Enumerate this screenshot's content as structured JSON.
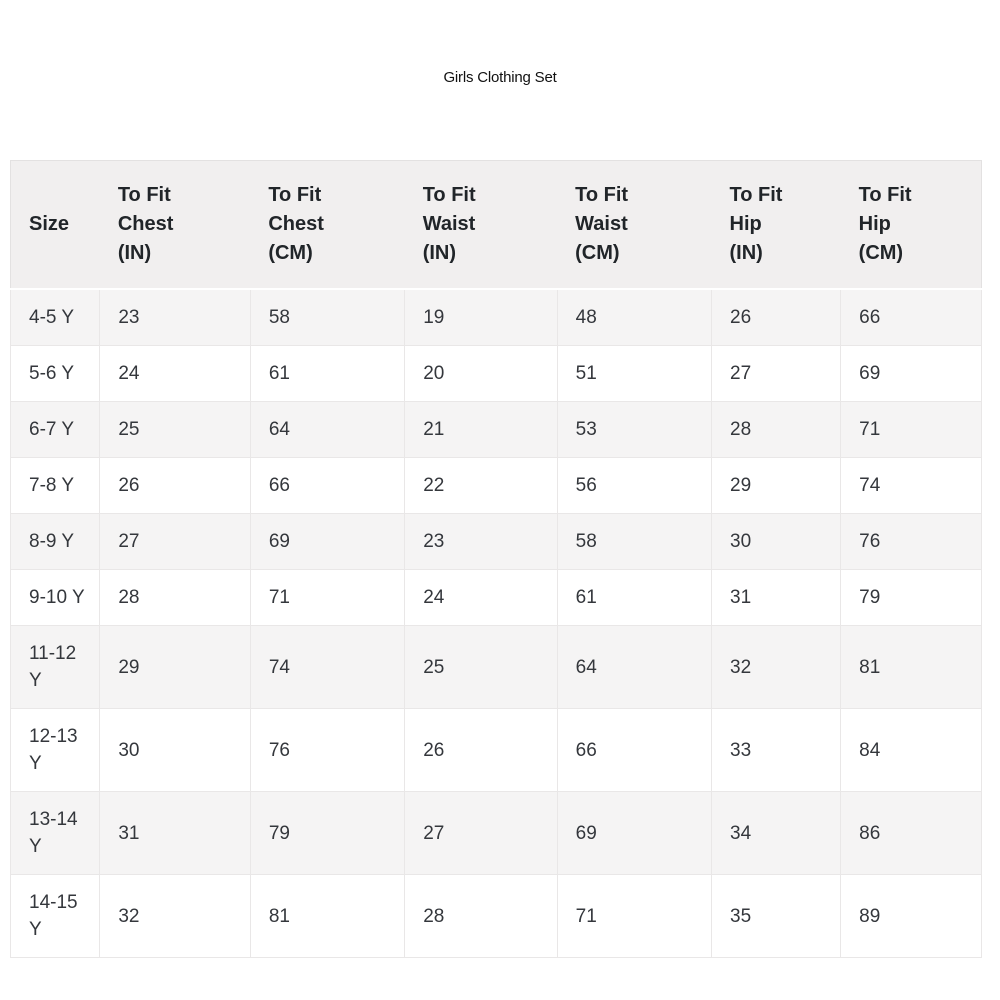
{
  "page": {
    "title": "Girls Clothing Set"
  },
  "size_chart": {
    "columns": [
      "Size",
      "To Fit\nChest\n(IN)",
      "To Fit\nChest\n(CM)",
      "To Fit\nWaist\n(IN)",
      "To Fit\nWaist\n(CM)",
      "To Fit\nHip\n(IN)",
      "To Fit\nHip\n(CM)"
    ],
    "rows": [
      [
        "4-5 Y",
        "23",
        "58",
        "19",
        "48",
        "26",
        "66"
      ],
      [
        "5-6 Y",
        "24",
        "61",
        "20",
        "51",
        "27",
        "69"
      ],
      [
        "6-7 Y",
        "25",
        "64",
        "21",
        "53",
        "28",
        "71"
      ],
      [
        "7-8 Y",
        "26",
        "66",
        "22",
        "56",
        "29",
        "74"
      ],
      [
        "8-9 Y",
        "27",
        "69",
        "23",
        "58",
        "30",
        "76"
      ],
      [
        "9-10 Y",
        "28",
        "71",
        "24",
        "61",
        "31",
        "79"
      ],
      [
        "11-12\nY",
        "29",
        "74",
        "25",
        "64",
        "32",
        "81"
      ],
      [
        "12-13\nY",
        "30",
        "76",
        "26",
        "66",
        "33",
        "84"
      ],
      [
        "13-14\nY",
        "31",
        "79",
        "27",
        "69",
        "34",
        "86"
      ],
      [
        "14-15\nY",
        "32",
        "81",
        "28",
        "71",
        "35",
        "89"
      ]
    ],
    "colors": {
      "header_bg": "#f1efef",
      "row_alt_bg": "#f5f4f4",
      "row_bg": "#ffffff",
      "grid_border": "#e9e7e7",
      "outer_border": "#e3e1e1",
      "header_text": "#212529",
      "cell_text": "#34373c",
      "title_text": "#111111"
    }
  }
}
